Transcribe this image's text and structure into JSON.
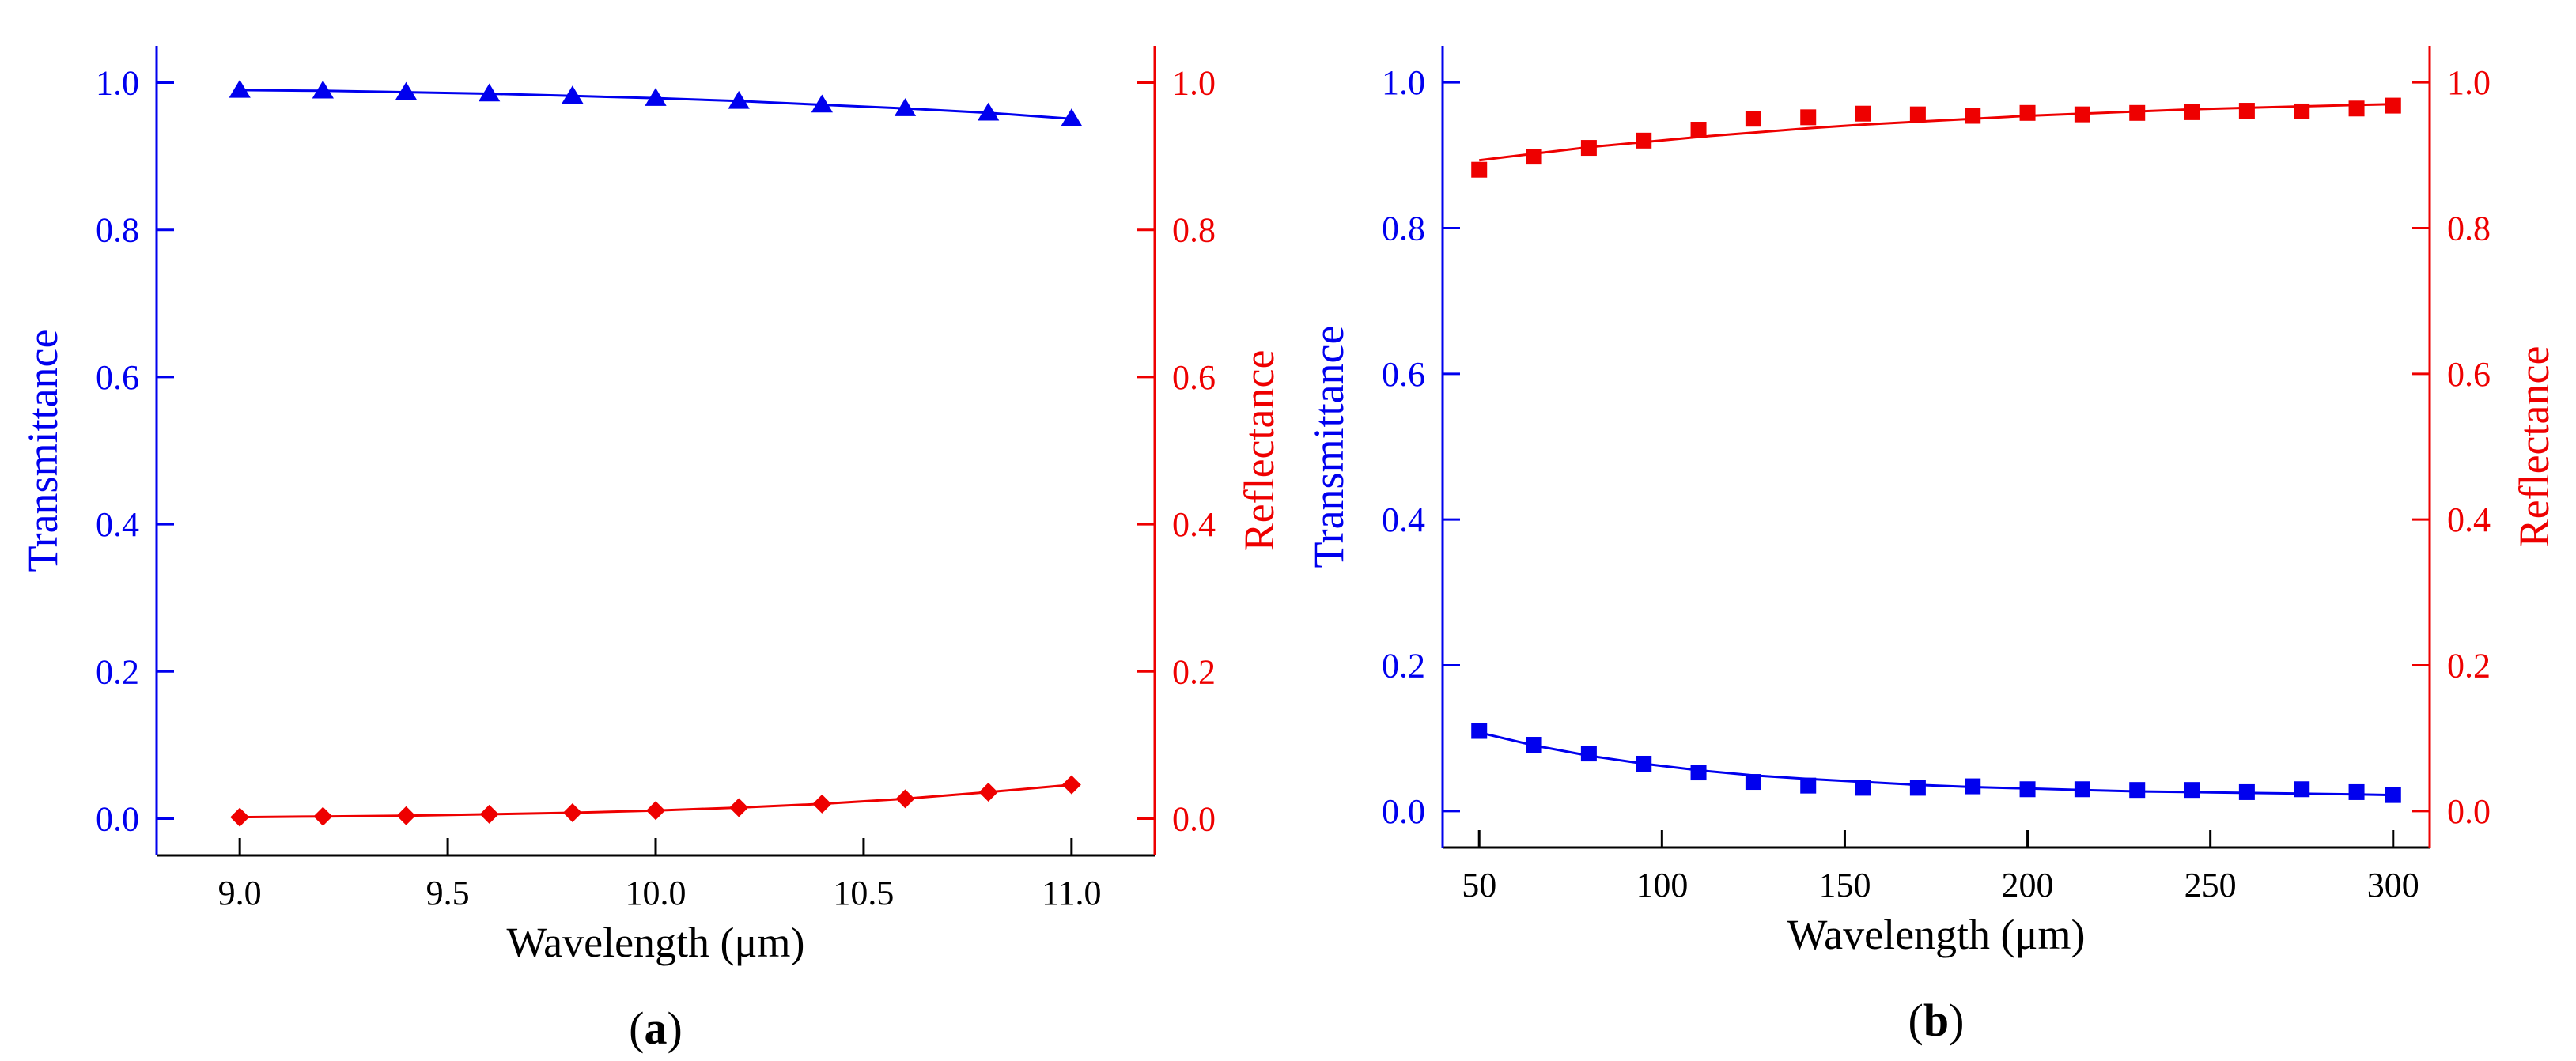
{
  "colors": {
    "transmittance": "#0000ee",
    "reflectance": "#ee0000",
    "axis": "#000000"
  },
  "chart_data": [
    {
      "panel_label": "(a)",
      "panel_letter": "a",
      "xlabel": "Wavelength (μm)",
      "ylabel_left": "Transmittance",
      "ylabel_right": "Reflectance",
      "xlim": [
        8.8,
        11.2
      ],
      "ylim_left": [
        -0.05,
        1.05
      ],
      "ylim_right": [
        -0.05,
        1.05
      ],
      "xticks": [
        9.0,
        9.5,
        10.0,
        10.5,
        11.0
      ],
      "xtick_labels": [
        "9.0",
        "9.5",
        "10.0",
        "10.5",
        "11.0"
      ],
      "yticks": [
        0.0,
        0.2,
        0.4,
        0.6,
        0.8,
        1.0
      ],
      "ytick_labels": [
        "0.0",
        "0.2",
        "0.4",
        "0.6",
        "0.8",
        "1.0"
      ],
      "series": [
        {
          "name": "Transmittance",
          "axis": "left",
          "marker": "triangle",
          "color": "#0000ee",
          "x": [
            9.0,
            9.2,
            9.4,
            9.6,
            9.8,
            10.0,
            10.2,
            10.4,
            10.6,
            10.8,
            11.0
          ],
          "values": [
            0.99,
            0.989,
            0.987,
            0.985,
            0.982,
            0.979,
            0.975,
            0.97,
            0.965,
            0.959,
            0.951
          ]
        },
        {
          "name": "Reflectance",
          "axis": "right",
          "marker": "diamond",
          "color": "#ee0000",
          "x": [
            9.0,
            9.2,
            9.4,
            9.6,
            9.8,
            10.0,
            10.2,
            10.4,
            10.6,
            10.8,
            11.0
          ],
          "values": [
            0.002,
            0.003,
            0.004,
            0.006,
            0.008,
            0.011,
            0.015,
            0.02,
            0.027,
            0.036,
            0.046
          ]
        }
      ]
    },
    {
      "panel_label": "(b)",
      "panel_letter": "b",
      "xlabel": "Wavelength (μm)",
      "ylabel_left": "Transmittance",
      "ylabel_right": "Reflectance",
      "xlim": [
        40,
        310
      ],
      "ylim_left": [
        -0.05,
        1.05
      ],
      "ylim_right": [
        -0.05,
        1.05
      ],
      "xticks": [
        50,
        100,
        150,
        200,
        250,
        300
      ],
      "xtick_labels": [
        "50",
        "100",
        "150",
        "200",
        "250",
        "300"
      ],
      "yticks": [
        0.0,
        0.2,
        0.4,
        0.6,
        0.8,
        1.0
      ],
      "ytick_labels": [
        "0.0",
        "0.2",
        "0.4",
        "0.6",
        "0.8",
        "1.0"
      ],
      "series": [
        {
          "name": "Reflectance",
          "axis": "right",
          "marker": "square",
          "color": "#ee0000",
          "x": [
            50,
            65,
            80,
            95,
            110,
            125,
            140,
            155,
            170,
            185,
            200,
            215,
            230,
            245,
            260,
            275,
            290,
            300
          ],
          "values": [
            0.88,
            0.898,
            0.91,
            0.92,
            0.935,
            0.95,
            0.952,
            0.957,
            0.956,
            0.954,
            0.958,
            0.956,
            0.958,
            0.959,
            0.961,
            0.96,
            0.964,
            0.968
          ],
          "fit_x": [
            50,
            65,
            80,
            95,
            110,
            125,
            140,
            155,
            170,
            185,
            200,
            215,
            230,
            245,
            260,
            275,
            290,
            300
          ],
          "fit_values": [
            0.893,
            0.902,
            0.911,
            0.918,
            0.925,
            0.931,
            0.937,
            0.942,
            0.946,
            0.95,
            0.954,
            0.957,
            0.96,
            0.963,
            0.965,
            0.967,
            0.969,
            0.97
          ]
        },
        {
          "name": "Transmittance",
          "axis": "left",
          "marker": "square",
          "color": "#0000ee",
          "x": [
            50,
            65,
            80,
            95,
            110,
            125,
            140,
            155,
            170,
            185,
            200,
            215,
            230,
            245,
            260,
            275,
            290,
            300
          ],
          "values": [
            0.11,
            0.091,
            0.079,
            0.065,
            0.053,
            0.04,
            0.035,
            0.032,
            0.032,
            0.034,
            0.03,
            0.03,
            0.029,
            0.029,
            0.026,
            0.03,
            0.026,
            0.022
          ],
          "fit_x": [
            50,
            65,
            80,
            95,
            110,
            125,
            140,
            155,
            170,
            185,
            200,
            215,
            230,
            245,
            260,
            275,
            290,
            300
          ],
          "fit_values": [
            0.108,
            0.09,
            0.076,
            0.065,
            0.056,
            0.049,
            0.044,
            0.04,
            0.036,
            0.033,
            0.031,
            0.029,
            0.027,
            0.026,
            0.025,
            0.024,
            0.023,
            0.022
          ]
        }
      ]
    }
  ]
}
